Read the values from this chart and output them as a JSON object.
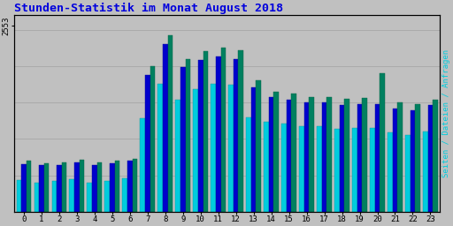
{
  "title": "Stunden-Statistik im Monat August 2018",
  "title_color": "#0000dd",
  "title_fontsize": 9.5,
  "ylabel_right": "Seiten / Dateien / Anfragen",
  "background_color": "#c0c0c0",
  "plot_bg_color": "#c0c0c0",
  "hours": [
    0,
    1,
    2,
    3,
    4,
    5,
    6,
    7,
    8,
    9,
    10,
    11,
    12,
    13,
    14,
    15,
    16,
    17,
    18,
    19,
    20,
    21,
    22,
    23
  ],
  "seiten": [
    700,
    670,
    680,
    710,
    680,
    700,
    730,
    2000,
    2420,
    2100,
    2200,
    2250,
    2220,
    1800,
    1650,
    1620,
    1580,
    1580,
    1550,
    1560,
    1900,
    1500,
    1480,
    1540
  ],
  "dateien": [
    660,
    640,
    645,
    680,
    645,
    665,
    700,
    1880,
    2300,
    1980,
    2080,
    2130,
    2100,
    1710,
    1570,
    1540,
    1500,
    1500,
    1465,
    1480,
    1480,
    1420,
    1395,
    1460
  ],
  "anfragen": [
    440,
    400,
    420,
    450,
    400,
    430,
    460,
    1280,
    1750,
    1540,
    1680,
    1760,
    1740,
    1300,
    1230,
    1210,
    1170,
    1170,
    1140,
    1145,
    1145,
    1085,
    1055,
    1100
  ],
  "color_seiten": "#008060",
  "color_dateien": "#0000cc",
  "color_anfragen": "#00ccdd",
  "ylim": [
    0,
    2700
  ],
  "bar_width": 0.28,
  "grid_color": "#aaaaaa",
  "border_color": "#000000",
  "ytick_val": 2553,
  "ytick_label": "2553"
}
